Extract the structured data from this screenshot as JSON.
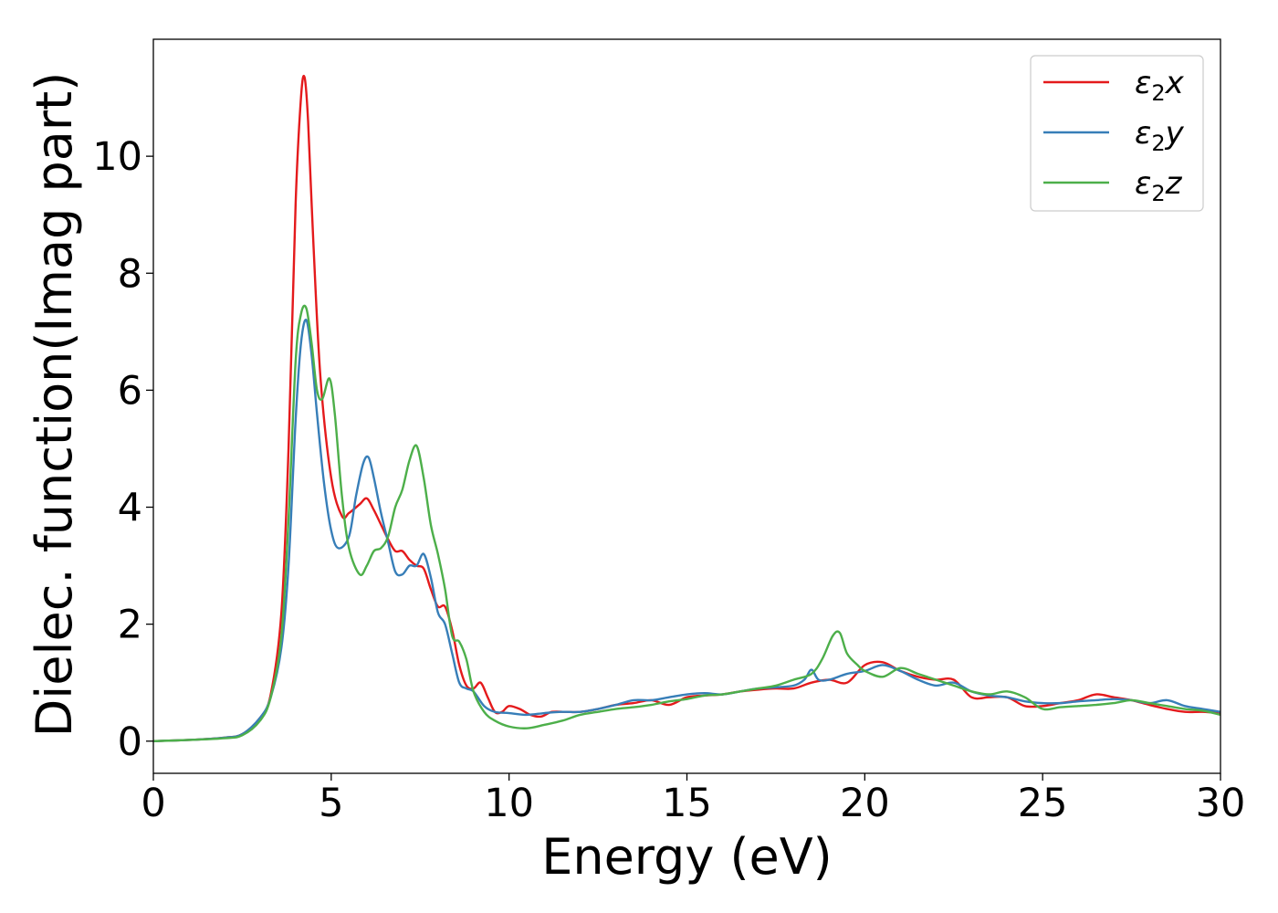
{
  "chart_data": {
    "type": "line",
    "title": "",
    "xlabel": "Energy (eV)",
    "ylabel": "Dielec. function(Imag part)",
    "xlim": [
      0,
      30
    ],
    "ylim": [
      -0.55,
      12.0
    ],
    "xticks": [
      0,
      5,
      10,
      15,
      20,
      25,
      30
    ],
    "yticks": [
      0,
      2,
      4,
      6,
      8,
      10
    ],
    "grid": false,
    "legend_position": "top-right",
    "series": [
      {
        "name": "ε₂x",
        "legend_base": "ε",
        "legend_sub": "2",
        "legend_suffix": "x",
        "color": "#e41a1c",
        "x": [
          0,
          1,
          2,
          2.5,
          3,
          3.3,
          3.6,
          3.8,
          4.0,
          4.15,
          4.25,
          4.35,
          4.5,
          4.7,
          5.0,
          5.3,
          5.5,
          5.8,
          6.0,
          6.2,
          6.4,
          6.6,
          6.8,
          7.0,
          7.2,
          7.4,
          7.6,
          7.8,
          8.0,
          8.2,
          8.4,
          8.6,
          8.8,
          9.0,
          9.2,
          9.4,
          9.6,
          9.8,
          10.0,
          10.3,
          10.6,
          10.9,
          11.2,
          11.6,
          12.0,
          12.5,
          13.0,
          13.5,
          14.0,
          14.5,
          15.0,
          15.5,
          16.0,
          16.5,
          17.0,
          17.5,
          18.0,
          18.5,
          19.0,
          19.5,
          20.0,
          20.5,
          21.0,
          21.5,
          22.0,
          22.5,
          23.0,
          23.5,
          24.0,
          24.5,
          25.0,
          25.5,
          26.0,
          26.5,
          27.0,
          27.5,
          28.0,
          28.5,
          29.0,
          29.5,
          30.0
        ],
        "y": [
          0.0,
          0.02,
          0.06,
          0.12,
          0.4,
          0.8,
          2.2,
          5.0,
          9.2,
          11.0,
          11.35,
          10.6,
          8.5,
          6.2,
          4.5,
          3.85,
          3.9,
          4.05,
          4.15,
          3.95,
          3.7,
          3.45,
          3.25,
          3.25,
          3.1,
          3.0,
          2.95,
          2.6,
          2.3,
          2.3,
          1.9,
          1.3,
          0.95,
          0.9,
          1.0,
          0.75,
          0.5,
          0.5,
          0.6,
          0.55,
          0.45,
          0.42,
          0.5,
          0.5,
          0.5,
          0.55,
          0.62,
          0.65,
          0.7,
          0.62,
          0.75,
          0.78,
          0.8,
          0.85,
          0.88,
          0.9,
          0.9,
          1.0,
          1.05,
          1.0,
          1.3,
          1.35,
          1.2,
          1.1,
          1.05,
          1.05,
          0.75,
          0.75,
          0.75,
          0.6,
          0.6,
          0.65,
          0.7,
          0.8,
          0.75,
          0.7,
          0.62,
          0.55,
          0.5,
          0.5,
          0.48
        ]
      },
      {
        "name": "ε₂y",
        "legend_base": "ε",
        "legend_sub": "2",
        "legend_suffix": "y",
        "color": "#377eb8",
        "x": [
          0,
          1,
          2,
          2.5,
          3,
          3.3,
          3.6,
          3.8,
          4.0,
          4.15,
          4.3,
          4.45,
          4.6,
          4.8,
          5.0,
          5.2,
          5.5,
          5.7,
          5.9,
          6.05,
          6.2,
          6.4,
          6.6,
          6.8,
          7.0,
          7.2,
          7.4,
          7.6,
          7.8,
          8.0,
          8.2,
          8.4,
          8.6,
          8.8,
          9.0,
          9.3,
          9.6,
          10.0,
          10.5,
          11.0,
          11.5,
          12.0,
          12.5,
          13.0,
          13.5,
          14.0,
          14.5,
          15.0,
          15.5,
          16.0,
          16.5,
          17.0,
          17.5,
          18.0,
          18.3,
          18.5,
          18.7,
          19.0,
          19.5,
          20.0,
          20.5,
          21.0,
          21.5,
          22.0,
          22.5,
          23.0,
          23.5,
          24.0,
          24.5,
          25.0,
          25.5,
          26.0,
          26.5,
          27.0,
          27.5,
          28.0,
          28.5,
          29.0,
          29.5,
          30.0
        ],
        "y": [
          0.0,
          0.02,
          0.06,
          0.12,
          0.4,
          0.75,
          1.6,
          3.0,
          5.5,
          6.8,
          7.2,
          6.6,
          5.6,
          4.4,
          3.6,
          3.3,
          3.5,
          4.2,
          4.75,
          4.85,
          4.5,
          3.9,
          3.4,
          2.9,
          2.85,
          3.0,
          3.0,
          3.2,
          2.8,
          2.2,
          2.0,
          1.5,
          1.0,
          0.9,
          0.85,
          0.6,
          0.5,
          0.48,
          0.45,
          0.48,
          0.5,
          0.5,
          0.55,
          0.62,
          0.7,
          0.7,
          0.75,
          0.8,
          0.82,
          0.8,
          0.85,
          0.9,
          0.92,
          0.95,
          1.05,
          1.22,
          1.05,
          1.05,
          1.15,
          1.2,
          1.3,
          1.2,
          1.05,
          0.95,
          1.0,
          0.85,
          0.78,
          0.75,
          0.68,
          0.65,
          0.65,
          0.68,
          0.7,
          0.72,
          0.7,
          0.65,
          0.7,
          0.6,
          0.55,
          0.5
        ]
      },
      {
        "name": "ε₂z",
        "legend_base": "ε",
        "legend_sub": "2",
        "legend_suffix": "z",
        "color": "#4daf4a",
        "x": [
          0,
          1,
          2,
          2.5,
          3,
          3.3,
          3.6,
          3.8,
          4.0,
          4.15,
          4.3,
          4.45,
          4.6,
          4.75,
          4.95,
          5.1,
          5.3,
          5.5,
          5.8,
          6.0,
          6.2,
          6.4,
          6.6,
          6.8,
          7.0,
          7.2,
          7.4,
          7.6,
          7.8,
          8.0,
          8.2,
          8.4,
          8.6,
          8.8,
          9.0,
          9.3,
          9.6,
          10.0,
          10.5,
          11.0,
          11.5,
          12.0,
          12.5,
          13.0,
          13.5,
          14.0,
          14.5,
          15.0,
          15.5,
          16.0,
          16.5,
          17.0,
          17.5,
          18.0,
          18.5,
          18.8,
          19.1,
          19.3,
          19.5,
          19.8,
          20.0,
          20.5,
          21.0,
          21.5,
          22.0,
          22.5,
          23.0,
          23.5,
          24.0,
          24.5,
          25.0,
          25.5,
          26.0,
          26.5,
          27.0,
          27.5,
          28.0,
          28.5,
          29.0,
          29.5,
          30.0
        ],
        "y": [
          0.0,
          0.02,
          0.05,
          0.1,
          0.35,
          0.75,
          1.8,
          3.8,
          6.5,
          7.3,
          7.4,
          6.8,
          6.0,
          5.85,
          6.2,
          5.6,
          4.2,
          3.3,
          2.85,
          3.0,
          3.25,
          3.3,
          3.5,
          4.0,
          4.3,
          4.8,
          5.05,
          4.5,
          3.7,
          3.2,
          2.6,
          1.8,
          1.7,
          1.4,
          0.85,
          0.5,
          0.35,
          0.25,
          0.22,
          0.28,
          0.35,
          0.45,
          0.5,
          0.55,
          0.58,
          0.62,
          0.68,
          0.72,
          0.78,
          0.8,
          0.85,
          0.9,
          0.95,
          1.05,
          1.15,
          1.4,
          1.8,
          1.85,
          1.5,
          1.3,
          1.2,
          1.1,
          1.25,
          1.15,
          1.05,
          0.95,
          0.85,
          0.8,
          0.85,
          0.75,
          0.55,
          0.58,
          0.6,
          0.62,
          0.65,
          0.7,
          0.65,
          0.6,
          0.55,
          0.52,
          0.45
        ]
      }
    ]
  }
}
